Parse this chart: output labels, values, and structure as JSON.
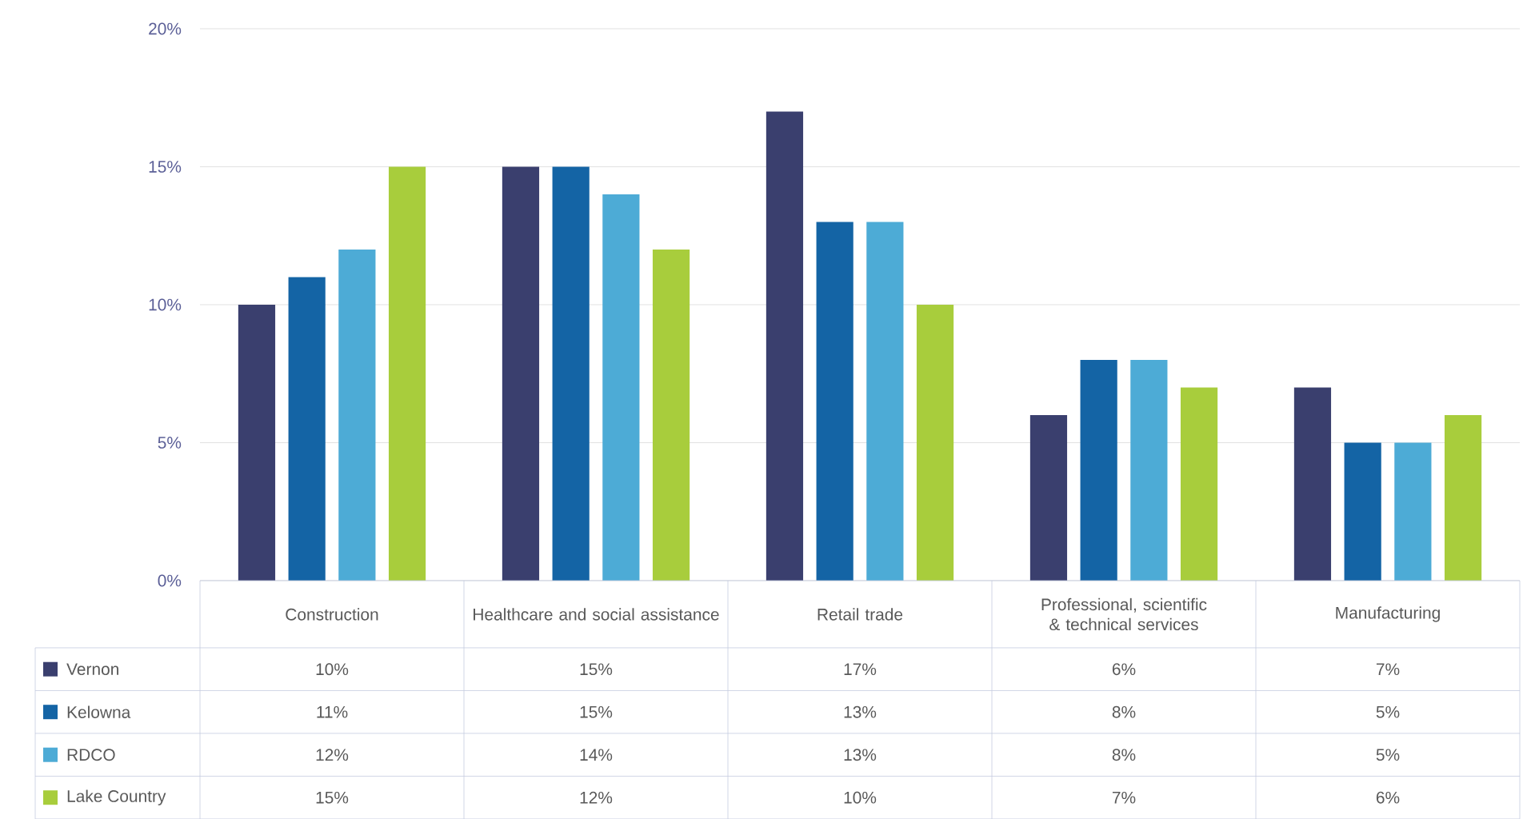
{
  "chart_data": {
    "type": "bar",
    "categories": [
      "Construction",
      "Healthcare and social assistance",
      "Retail trade",
      "Professional, scientific & technical services",
      "Manufacturing"
    ],
    "series": [
      {
        "name": "Vernon",
        "color": "#3a3f6e",
        "values": [
          10,
          15,
          17,
          6,
          7
        ],
        "value_labels": [
          "10%",
          "15%",
          "17%",
          "6%",
          "7%"
        ]
      },
      {
        "name": "Kelowna",
        "color": "#1464a5",
        "values": [
          11,
          15,
          13,
          8,
          5
        ],
        "value_labels": [
          "11%",
          "15%",
          "13%",
          "8%",
          "5%"
        ]
      },
      {
        "name": "RDCO",
        "color": "#4dabd6",
        "values": [
          12,
          14,
          13,
          8,
          5
        ],
        "value_labels": [
          "12%",
          "14%",
          "13%",
          "8%",
          "5%"
        ]
      },
      {
        "name": "Lake Country",
        "color": "#a8cd3c",
        "values": [
          15,
          12,
          10,
          7,
          6
        ],
        "value_labels": [
          "15%",
          "12%",
          "10%",
          "7%",
          "6%"
        ]
      }
    ],
    "ylim": [
      0,
      20
    ],
    "yticks": [
      {
        "value": 0,
        "label": "0%"
      },
      {
        "value": 5,
        "label": "5%"
      },
      {
        "value": 10,
        "label": "10%"
      },
      {
        "value": 15,
        "label": "15%"
      },
      {
        "value": 20,
        "label": "20%"
      }
    ],
    "grid": "y",
    "legend": "bottom"
  }
}
